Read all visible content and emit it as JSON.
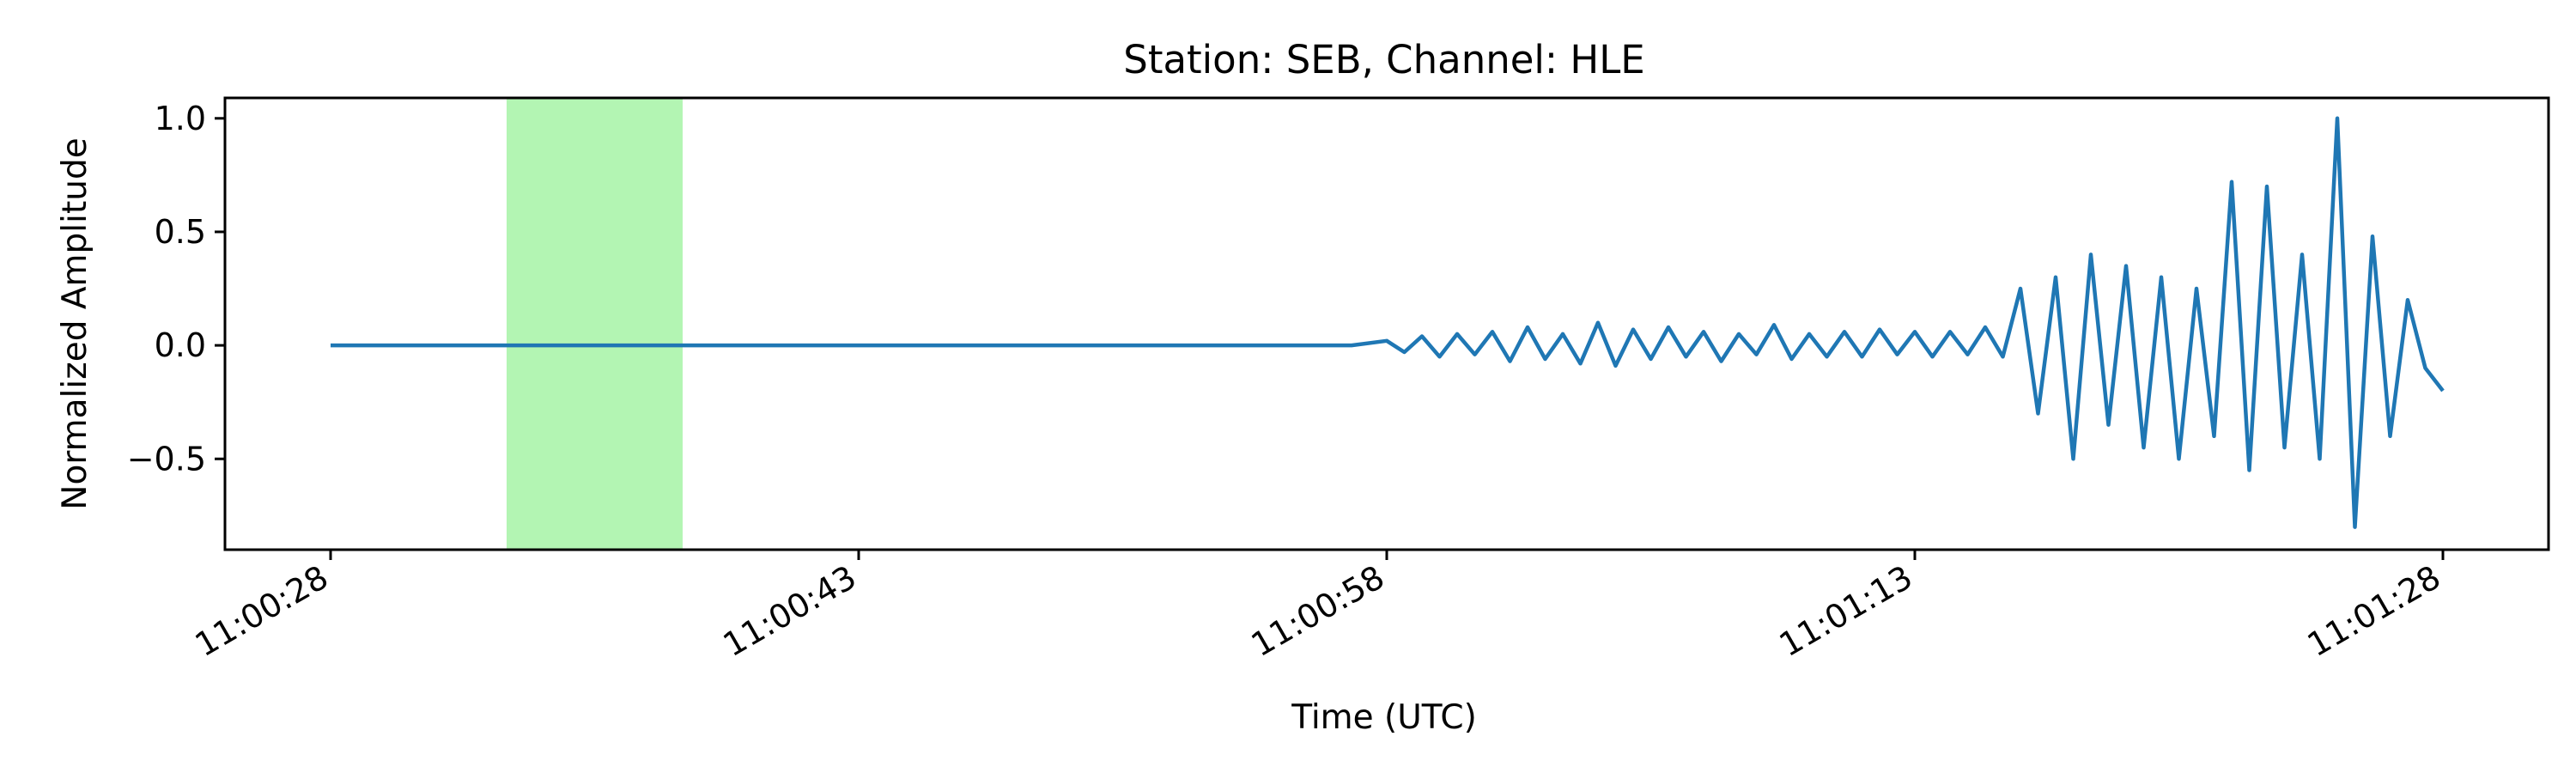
{
  "chart_data": {
    "type": "line",
    "title": "Station: SEB, Channel: HLE",
    "xlabel": "Time (UTC)",
    "ylabel": "Normalized Amplitude",
    "x_unit": "seconds",
    "xlim": [
      -3,
      63
    ],
    "ylim": [
      -0.9,
      1.09
    ],
    "x_ticks": [
      {
        "value": 0,
        "label": "11:00:28"
      },
      {
        "value": 15,
        "label": "11:00:43"
      },
      {
        "value": 30,
        "label": "11:00:58"
      },
      {
        "value": 45,
        "label": "11:01:13"
      },
      {
        "value": 60,
        "label": "11:01:28"
      }
    ],
    "y_ticks": [
      {
        "value": 1.0,
        "label": "1.0"
      },
      {
        "value": 0.5,
        "label": "0.5"
      },
      {
        "value": 0.0,
        "label": "0.0"
      },
      {
        "value": -0.5,
        "label": "−0.5"
      }
    ],
    "shaded_region": {
      "x_start": 5,
      "x_end": 10,
      "color": "#b3f5b3"
    },
    "series": [
      {
        "color": "#1f77b4",
        "x": [
          0,
          29,
          30,
          30.5,
          31,
          31.5,
          32,
          32.5,
          33,
          33.5,
          34,
          34.5,
          35,
          35.5,
          36,
          36.5,
          37,
          37.5,
          38,
          38.5,
          39,
          39.5,
          40,
          40.5,
          41,
          41.5,
          42,
          42.5,
          43,
          43.5,
          44,
          44.5,
          45,
          45.5,
          46,
          46.5,
          47,
          47.5,
          48,
          48.5,
          49,
          49.5,
          50,
          50.5,
          51,
          51.5,
          52,
          52.5,
          53,
          53.5,
          54,
          54.5,
          55,
          55.5,
          56,
          56.5,
          57,
          57.5,
          58,
          58.5,
          59,
          59.5,
          60
        ],
        "y": [
          0,
          0,
          0.02,
          -0.03,
          0.04,
          -0.05,
          0.05,
          -0.04,
          0.06,
          -0.07,
          0.08,
          -0.06,
          0.05,
          -0.08,
          0.1,
          -0.09,
          0.07,
          -0.06,
          0.08,
          -0.05,
          0.06,
          -0.07,
          0.05,
          -0.04,
          0.09,
          -0.06,
          0.05,
          -0.05,
          0.06,
          -0.05,
          0.07,
          -0.04,
          0.06,
          -0.05,
          0.06,
          -0.04,
          0.08,
          -0.05,
          0.25,
          -0.3,
          0.3,
          -0.5,
          0.4,
          -0.35,
          0.35,
          -0.45,
          0.3,
          -0.5,
          0.25,
          -0.4,
          0.72,
          -0.55,
          0.7,
          -0.45,
          0.4,
          -0.5,
          1.0,
          -0.8,
          0.48,
          -0.4,
          0.2,
          -0.1,
          -0.2
        ]
      }
    ]
  }
}
